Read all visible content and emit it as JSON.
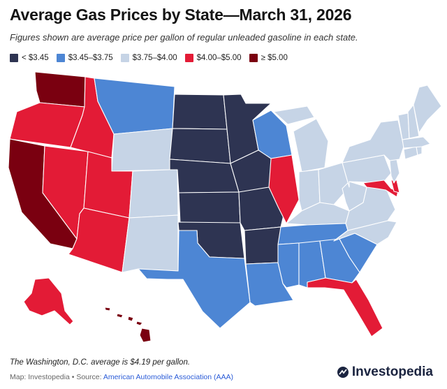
{
  "header": {
    "title": "Average Gas Prices by State—March 31, 2026",
    "subtitle": "Figures shown are average price per gallon of regular unleaded gasoline in each state."
  },
  "legend": [
    {
      "label": "< $3.45",
      "color": "#2e3452"
    },
    {
      "label": "$3.45–$3.75",
      "color": "#4d86d4"
    },
    {
      "label": "$3.75–$4.00",
      "color": "#c6d4e6"
    },
    {
      "label": "$4.00–$5.00",
      "color": "#e31b36"
    },
    {
      "label": "≥ $5.00",
      "color": "#7a0010"
    }
  ],
  "map_data": {
    "units": "USD per gallon",
    "price_band_by_state": {
      "WA": 4,
      "OR": 3,
      "CA": 4,
      "NV": 3,
      "ID": 3,
      "MT": 1,
      "WY": 2,
      "UT": 3,
      "AZ": 3,
      "CO": 2,
      "NM": 2,
      "ND": 0,
      "SD": 0,
      "NE": 0,
      "KS": 0,
      "OK": 0,
      "TX": 1,
      "MN": 0,
      "IA": 0,
      "MO": 0,
      "AR": 0,
      "LA": 1,
      "WI": 1,
      "IL": 3,
      "MI": 2,
      "IN": 2,
      "OH": 2,
      "KY": 2,
      "TN": 1,
      "MS": 1,
      "AL": 1,
      "GA": 1,
      "FL": 3,
      "SC": 1,
      "NC": 2,
      "VA": 2,
      "WV": 2,
      "PA": 2,
      "NY": 2,
      "MD": 3,
      "DE": 3,
      "NJ": 2,
      "CT": 2,
      "RI": 2,
      "MA": 2,
      "VT": 2,
      "NH": 2,
      "ME": 2,
      "AK": 3,
      "HI": 4
    }
  },
  "footer": {
    "note": "The Washington, D.C. average is $4.19 per gallon.",
    "credit_prefix": "Map: Investopedia • Source: ",
    "credit_source": "American Automobile Association (AAA)",
    "brand": "Investopedia"
  },
  "icons": {
    "brand_logo": "investopedia-logo-icon"
  }
}
